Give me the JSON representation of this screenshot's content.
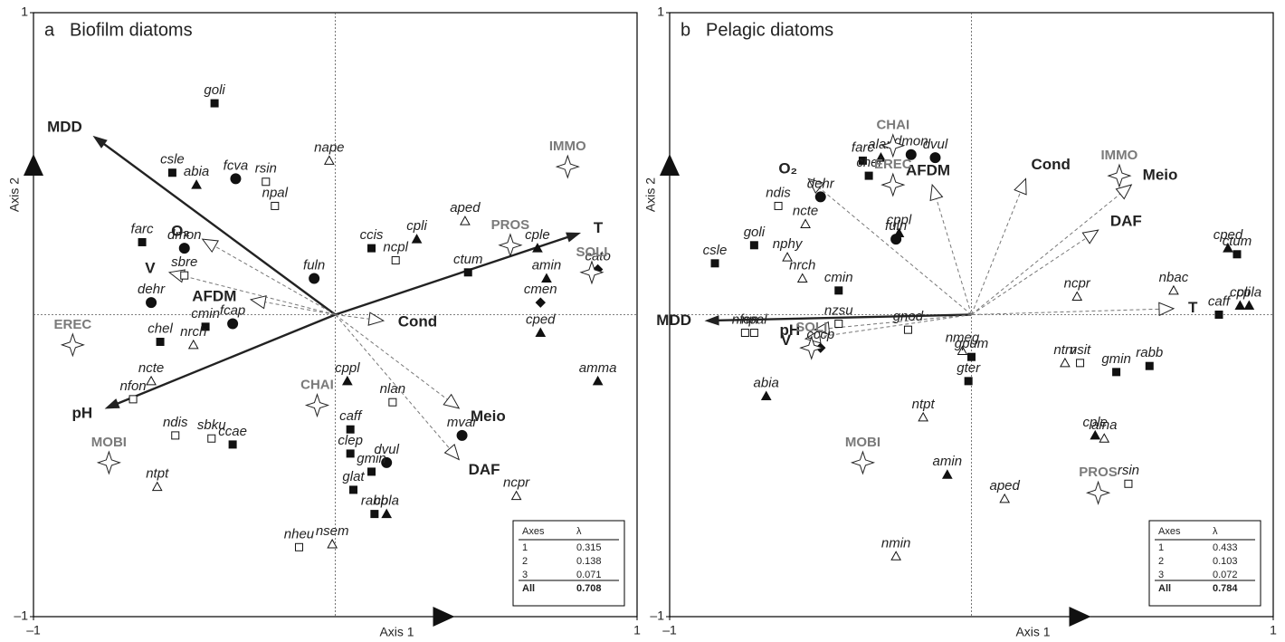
{
  "chart_data": [
    {
      "type": "biplot",
      "panel_label": "a",
      "title": "Biofilm diatoms",
      "xlabel": "Axis 1",
      "ylabel": "Axis 2",
      "xlim": [
        -1,
        1
      ],
      "ylim": [
        -1,
        1
      ],
      "xticks": [
        {
          "value": -1,
          "label": "–1"
        },
        1
      ],
      "yticks": [
        {
          "value": -1,
          "label": "–1"
        },
        1
      ],
      "points": [
        {
          "label": "goli",
          "x": -0.4,
          "y": 0.7,
          "marker": "filled-square"
        },
        {
          "label": "csle",
          "x": -0.54,
          "y": 0.47,
          "marker": "filled-square"
        },
        {
          "label": "abia",
          "x": -0.46,
          "y": 0.43,
          "marker": "filled-triangle"
        },
        {
          "label": "fcva",
          "x": -0.33,
          "y": 0.45,
          "marker": "circle"
        },
        {
          "label": "rsin",
          "x": -0.23,
          "y": 0.44,
          "marker": "open-square"
        },
        {
          "label": "npal",
          "x": -0.2,
          "y": 0.36,
          "marker": "open-square"
        },
        {
          "label": "nape",
          "x": -0.02,
          "y": 0.51,
          "marker": "open-triangle"
        },
        {
          "label": "farc",
          "x": -0.64,
          "y": 0.24,
          "marker": "filled-square"
        },
        {
          "label": "dmon",
          "x": -0.5,
          "y": 0.22,
          "marker": "circle"
        },
        {
          "label": "sbre",
          "x": -0.5,
          "y": 0.13,
          "marker": "open-square"
        },
        {
          "label": "dehr",
          "x": -0.61,
          "y": 0.04,
          "marker": "circle"
        },
        {
          "label": "fuln",
          "x": -0.07,
          "y": 0.12,
          "marker": "circle"
        },
        {
          "label": "cmin",
          "x": -0.43,
          "y": -0.04,
          "marker": "filled-square"
        },
        {
          "label": "fcap",
          "x": -0.34,
          "y": -0.03,
          "marker": "circle"
        },
        {
          "label": "chel",
          "x": -0.58,
          "y": -0.09,
          "marker": "filled-square"
        },
        {
          "label": "nrch",
          "x": -0.47,
          "y": -0.1,
          "marker": "open-triangle"
        },
        {
          "label": "ncte",
          "x": -0.61,
          "y": -0.22,
          "marker": "open-triangle"
        },
        {
          "label": "nfon",
          "x": -0.67,
          "y": -0.28,
          "marker": "open-square"
        },
        {
          "label": "ndis",
          "x": -0.53,
          "y": -0.4,
          "marker": "open-square"
        },
        {
          "label": "sbku",
          "x": -0.41,
          "y": -0.41,
          "marker": "open-square"
        },
        {
          "label": "ccae",
          "x": -0.34,
          "y": -0.43,
          "marker": "filled-square"
        },
        {
          "label": "ntpt",
          "x": -0.59,
          "y": -0.57,
          "marker": "open-triangle"
        },
        {
          "label": "ccis",
          "x": 0.12,
          "y": 0.22,
          "marker": "filled-square"
        },
        {
          "label": "ncpl",
          "x": 0.2,
          "y": 0.18,
          "marker": "open-square"
        },
        {
          "label": "cpli",
          "x": 0.27,
          "y": 0.25,
          "marker": "filled-triangle"
        },
        {
          "label": "aped",
          "x": 0.43,
          "y": 0.31,
          "marker": "open-triangle"
        },
        {
          "label": "ctum",
          "x": 0.44,
          "y": 0.14,
          "marker": "filled-square"
        },
        {
          "label": "cple",
          "x": 0.67,
          "y": 0.22,
          "marker": "filled-triangle"
        },
        {
          "label": "cato",
          "x": 0.87,
          "y": 0.15,
          "marker": "diamond"
        },
        {
          "label": "amin",
          "x": 0.7,
          "y": 0.12,
          "marker": "filled-triangle"
        },
        {
          "label": "cmen",
          "x": 0.68,
          "y": 0.04,
          "marker": "diamond"
        },
        {
          "label": "cped",
          "x": 0.68,
          "y": -0.06,
          "marker": "filled-triangle"
        },
        {
          "label": "amma",
          "x": 0.87,
          "y": -0.22,
          "marker": "filled-triangle"
        },
        {
          "label": "cppl",
          "x": 0.04,
          "y": -0.22,
          "marker": "filled-triangle"
        },
        {
          "label": "nlan",
          "x": 0.19,
          "y": -0.29,
          "marker": "open-square"
        },
        {
          "label": "caff",
          "x": 0.05,
          "y": -0.38,
          "marker": "filled-square"
        },
        {
          "label": "clep",
          "x": 0.05,
          "y": -0.46,
          "marker": "filled-square"
        },
        {
          "label": "dvul",
          "x": 0.17,
          "y": -0.49,
          "marker": "circle"
        },
        {
          "label": "gmin",
          "x": 0.12,
          "y": -0.52,
          "marker": "filled-square"
        },
        {
          "label": "mvar",
          "x": 0.42,
          "y": -0.4,
          "marker": "circle"
        },
        {
          "label": "glat",
          "x": 0.06,
          "y": -0.58,
          "marker": "filled-square"
        },
        {
          "label": "rabb",
          "x": 0.13,
          "y": -0.66,
          "marker": "filled-square"
        },
        {
          "label": "cpla",
          "x": 0.17,
          "y": -0.66,
          "marker": "filled-triangle"
        },
        {
          "label": "ncpr",
          "x": 0.6,
          "y": -0.6,
          "marker": "open-triangle"
        },
        {
          "label": "nheu",
          "x": -0.12,
          "y": -0.77,
          "marker": "open-square"
        },
        {
          "label": "nsem",
          "x": -0.01,
          "y": -0.76,
          "marker": "open-triangle"
        }
      ],
      "variables": [
        {
          "label": "MDD",
          "x": -0.8,
          "y": 0.59,
          "style": "bold"
        },
        {
          "label": "T",
          "x": 0.81,
          "y": 0.27,
          "style": "bold"
        },
        {
          "label": "pH",
          "x": -0.76,
          "y": -0.31,
          "style": "bold"
        },
        {
          "label": "O₂",
          "x": -0.44,
          "y": 0.25,
          "style": "dashed"
        },
        {
          "label": "V",
          "x": -0.55,
          "y": 0.14,
          "style": "dashed"
        },
        {
          "label": "AFDM",
          "x": -0.28,
          "y": 0.05,
          "style": "dashed"
        },
        {
          "label": "Cond",
          "x": 0.16,
          "y": -0.02,
          "style": "dashed"
        },
        {
          "label": "Meio",
          "x": 0.41,
          "y": -0.31,
          "style": "dashed"
        },
        {
          "label": "DAF",
          "x": 0.41,
          "y": -0.48,
          "style": "dashed"
        }
      ],
      "centroids": [
        {
          "label": "IMMO",
          "x": 0.77,
          "y": 0.49
        },
        {
          "label": "PROS",
          "x": 0.58,
          "y": 0.23
        },
        {
          "label": "SOLI",
          "x": 0.85,
          "y": 0.14
        },
        {
          "label": "EREC",
          "x": -0.87,
          "y": -0.1
        },
        {
          "label": "CHAI",
          "x": -0.06,
          "y": -0.3
        },
        {
          "label": "MOBI",
          "x": -0.75,
          "y": -0.49
        }
      ],
      "eigenvalues": {
        "header": [
          "Axes",
          "λ"
        ],
        "rows": [
          [
            "1",
            0.315
          ],
          [
            "2",
            0.138
          ],
          [
            "3",
            0.071
          ],
          [
            "All",
            0.708
          ]
        ]
      }
    },
    {
      "type": "biplot",
      "panel_label": "b",
      "title": "Pelagic diatoms",
      "xlabel": "Axis 1",
      "ylabel": "Axis 2",
      "xlim": [
        -1,
        1
      ],
      "ylim": [
        -1,
        1
      ],
      "xticks": [
        {
          "value": -1,
          "label": "–1"
        },
        1
      ],
      "yticks": [
        {
          "value": -1,
          "label": "–1"
        },
        1
      ],
      "points": [
        {
          "label": "farc",
          "x": -0.36,
          "y": 0.51,
          "marker": "filled-square"
        },
        {
          "label": "alan",
          "x": -0.3,
          "y": 0.52,
          "marker": "filled-triangle"
        },
        {
          "label": "chel",
          "x": -0.34,
          "y": 0.46,
          "marker": "filled-square"
        },
        {
          "label": "dmon",
          "x": -0.2,
          "y": 0.53,
          "marker": "circle"
        },
        {
          "label": "dvul",
          "x": -0.12,
          "y": 0.52,
          "marker": "circle"
        },
        {
          "label": "ndis",
          "x": -0.64,
          "y": 0.36,
          "marker": "open-square"
        },
        {
          "label": "dehr",
          "x": -0.5,
          "y": 0.39,
          "marker": "circle"
        },
        {
          "label": "goli",
          "x": -0.72,
          "y": 0.23,
          "marker": "filled-square"
        },
        {
          "label": "ncte",
          "x": -0.55,
          "y": 0.3,
          "marker": "open-triangle"
        },
        {
          "label": "cppl",
          "x": -0.24,
          "y": 0.27,
          "marker": "filled-triangle"
        },
        {
          "label": "fuln",
          "x": -0.25,
          "y": 0.25,
          "marker": "circle"
        },
        {
          "label": "csle",
          "x": -0.85,
          "y": 0.17,
          "marker": "filled-square"
        },
        {
          "label": "nphy",
          "x": -0.61,
          "y": 0.19,
          "marker": "open-triangle"
        },
        {
          "label": "nrch",
          "x": -0.56,
          "y": 0.12,
          "marker": "open-triangle"
        },
        {
          "label": "cmin",
          "x": -0.44,
          "y": 0.08,
          "marker": "filled-square"
        },
        {
          "label": "nzsu",
          "x": -0.44,
          "y": -0.03,
          "marker": "open-square"
        },
        {
          "label": "nfon",
          "x": -0.75,
          "y": -0.06,
          "marker": "open-square"
        },
        {
          "label": "npal",
          "x": -0.72,
          "y": -0.06,
          "marker": "open-square"
        },
        {
          "label": "cccp",
          "x": -0.5,
          "y": -0.11,
          "marker": "diamond"
        },
        {
          "label": "gnod",
          "x": -0.21,
          "y": -0.05,
          "marker": "open-square"
        },
        {
          "label": "nmeg",
          "x": -0.03,
          "y": -0.12,
          "marker": "open-triangle"
        },
        {
          "label": "gpum",
          "x": 0.0,
          "y": -0.14,
          "marker": "filled-square"
        },
        {
          "label": "gter",
          "x": -0.01,
          "y": -0.22,
          "marker": "filled-square"
        },
        {
          "label": "abia",
          "x": -0.68,
          "y": -0.27,
          "marker": "filled-triangle"
        },
        {
          "label": "ntpt",
          "x": -0.16,
          "y": -0.34,
          "marker": "open-triangle"
        },
        {
          "label": "amin",
          "x": -0.08,
          "y": -0.53,
          "marker": "filled-triangle"
        },
        {
          "label": "aped",
          "x": 0.11,
          "y": -0.61,
          "marker": "open-triangle"
        },
        {
          "label": "nmin",
          "x": -0.25,
          "y": -0.8,
          "marker": "open-triangle"
        },
        {
          "label": "ntrv",
          "x": 0.31,
          "y": -0.16,
          "marker": "open-triangle"
        },
        {
          "label": "nsit",
          "x": 0.36,
          "y": -0.16,
          "marker": "open-square"
        },
        {
          "label": "gmin",
          "x": 0.48,
          "y": -0.19,
          "marker": "filled-square"
        },
        {
          "label": "rabb",
          "x": 0.59,
          "y": -0.17,
          "marker": "filled-square"
        },
        {
          "label": "cple",
          "x": 0.41,
          "y": -0.4,
          "marker": "filled-triangle"
        },
        {
          "label": "aina",
          "x": 0.44,
          "y": -0.41,
          "marker": "open-triangle"
        },
        {
          "label": "rsin",
          "x": 0.52,
          "y": -0.56,
          "marker": "open-square"
        },
        {
          "label": "ncpr",
          "x": 0.35,
          "y": 0.06,
          "marker": "open-triangle"
        },
        {
          "label": "nbac",
          "x": 0.67,
          "y": 0.08,
          "marker": "open-triangle"
        },
        {
          "label": "cped",
          "x": 0.85,
          "y": 0.22,
          "marker": "filled-triangle"
        },
        {
          "label": "ctum",
          "x": 0.88,
          "y": 0.2,
          "marker": "filled-square"
        },
        {
          "label": "cpla",
          "x": 0.92,
          "y": 0.03,
          "marker": "filled-triangle"
        },
        {
          "label": "cpli",
          "x": 0.89,
          "y": 0.03,
          "marker": "filled-triangle"
        },
        {
          "label": "caff",
          "x": 0.82,
          "y": 0.0,
          "marker": "filled-square"
        }
      ],
      "variables": [
        {
          "label": "MDD",
          "x": -0.88,
          "y": -0.02,
          "style": "bold"
        },
        {
          "label": "O₂",
          "x": -0.54,
          "y": 0.45,
          "style": "dashed"
        },
        {
          "label": "AFDM",
          "x": -0.13,
          "y": 0.43,
          "style": "dashed"
        },
        {
          "label": "Cond",
          "x": 0.18,
          "y": 0.45,
          "style": "dashed"
        },
        {
          "label": "Meio",
          "x": 0.53,
          "y": 0.43,
          "style": "dashed"
        },
        {
          "label": "DAF",
          "x": 0.42,
          "y": 0.28,
          "style": "dashed"
        },
        {
          "label": "T",
          "x": 0.67,
          "y": 0.02,
          "style": "dashed"
        },
        {
          "label": "pH",
          "x": -0.52,
          "y": -0.05,
          "style": "dashed"
        },
        {
          "label": "V",
          "x": -0.55,
          "y": -0.08,
          "style": "dashed"
        }
      ],
      "centroids": [
        {
          "label": "CHAI",
          "x": -0.26,
          "y": 0.56
        },
        {
          "label": "EREC",
          "x": -0.26,
          "y": 0.43
        },
        {
          "label": "IMMO",
          "x": 0.49,
          "y": 0.46
        },
        {
          "label": "SOLI",
          "x": -0.53,
          "y": -0.11
        },
        {
          "label": "MOBI",
          "x": -0.36,
          "y": -0.49
        },
        {
          "label": "PROS",
          "x": 0.42,
          "y": -0.59
        }
      ],
      "eigenvalues": {
        "header": [
          "Axes",
          "λ"
        ],
        "rows": [
          [
            "1",
            0.433
          ],
          [
            "2",
            0.103
          ],
          [
            "3",
            0.072
          ],
          [
            "All",
            0.784
          ]
        ]
      }
    }
  ]
}
